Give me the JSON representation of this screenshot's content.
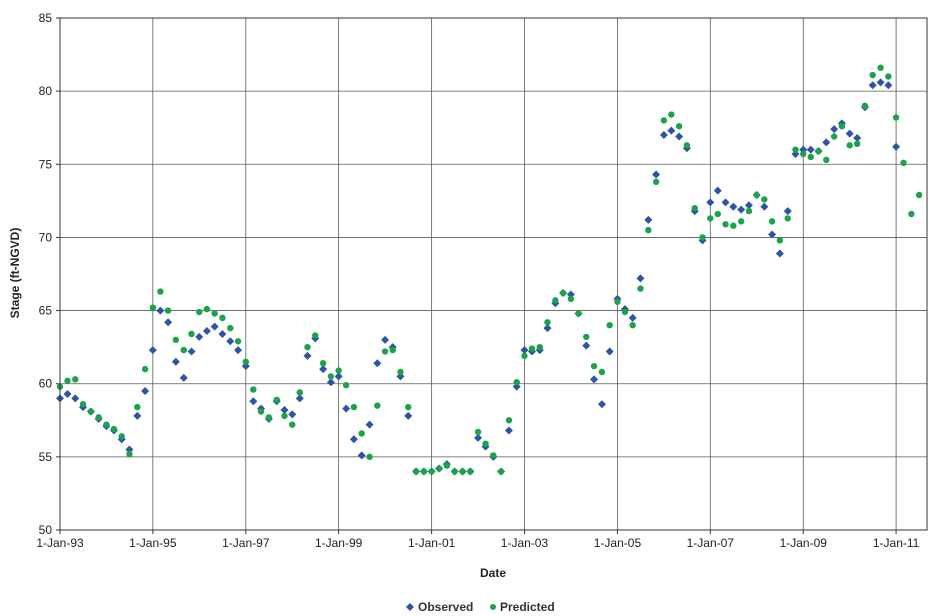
{
  "chart_data": {
    "type": "scatter",
    "title": "",
    "xlabel": "Date",
    "ylabel": "Stage (ft-NGVD)",
    "x_type": "date",
    "xlim": [
      "1993-01-01",
      "2011-09-01"
    ],
    "ylim": [
      50,
      85
    ],
    "grid": true,
    "legend_position": "bottom-center",
    "x_tick_labels": [
      "1-Jan-93",
      "1-Jan-95",
      "1-Jan-97",
      "1-Jan-99",
      "1-Jan-01",
      "1-Jan-03",
      "1-Jan-05",
      "1-Jan-07",
      "1-Jan-09",
      "1-Jan-11"
    ],
    "x_ticks": [
      "1993-01-01",
      "1995-01-01",
      "1997-01-01",
      "1999-01-01",
      "2001-01-01",
      "2003-01-01",
      "2005-01-01",
      "2007-01-01",
      "2009-01-01",
      "2011-01-01"
    ],
    "y_tick_labels": [
      "50",
      "55",
      "60",
      "65",
      "70",
      "75",
      "80",
      "85"
    ],
    "y_ticks": [
      50,
      55,
      60,
      65,
      70,
      75,
      80,
      85
    ],
    "series": [
      {
        "name": "Observed",
        "color": "#2E54A6",
        "marker": "diamond",
        "x": [
          "1993-01-01",
          "1993-03-01",
          "1993-05-01",
          "1993-07-01",
          "1993-09-01",
          "1993-11-01",
          "1994-01-01",
          "1994-03-01",
          "1994-05-01",
          "1994-07-01",
          "1994-09-01",
          "1994-11-01",
          "1995-01-01",
          "1995-03-01",
          "1995-05-01",
          "1995-07-01",
          "1995-09-01",
          "1995-11-01",
          "1996-01-01",
          "1996-03-01",
          "1996-05-01",
          "1996-07-01",
          "1996-09-01",
          "1996-11-01",
          "1997-01-01",
          "1997-03-01",
          "1997-05-01",
          "1997-07-01",
          "1997-09-01",
          "1997-11-01",
          "1998-01-01",
          "1998-03-01",
          "1998-05-01",
          "1998-07-01",
          "1998-09-01",
          "1998-11-01",
          "1999-01-01",
          "1999-03-01",
          "1999-05-01",
          "1999-07-01",
          "1999-09-01",
          "1999-11-01",
          "2000-01-01",
          "2000-03-01",
          "2000-05-01",
          "2000-07-01",
          "2000-09-01",
          "2000-11-01",
          "2001-01-01",
          "2001-03-01",
          "2001-05-01",
          "2001-07-01",
          "2001-09-01",
          "2001-11-01",
          "2002-01-01",
          "2002-03-01",
          "2002-05-01",
          "2002-07-01",
          "2002-09-01",
          "2002-11-01",
          "2003-01-01",
          "2003-03-01",
          "2003-05-01",
          "2003-07-01",
          "2003-09-01",
          "2003-11-01",
          "2004-01-01",
          "2004-03-01",
          "2004-05-01",
          "2004-07-01",
          "2004-09-01",
          "2004-11-01",
          "2005-01-01",
          "2005-03-01",
          "2005-05-01",
          "2005-07-01",
          "2005-09-01",
          "2005-11-01",
          "2006-01-01",
          "2006-03-01",
          "2006-05-01",
          "2006-07-01",
          "2006-09-01",
          "2006-11-01",
          "2007-01-01",
          "2007-03-01",
          "2007-05-01",
          "2007-07-01",
          "2007-09-01",
          "2007-11-01",
          "2008-01-01",
          "2008-03-01",
          "2008-05-01",
          "2008-07-01",
          "2008-09-01",
          "2008-11-01",
          "2009-01-01",
          "2009-03-01",
          "2009-05-01",
          "2009-07-01",
          "2009-09-01",
          "2009-11-01",
          "2010-01-01",
          "2010-03-01",
          "2010-05-01",
          "2010-07-01",
          "2010-09-01",
          "2010-11-01",
          "2011-01-01"
        ],
        "y": [
          59.0,
          59.3,
          59.0,
          58.4,
          58.1,
          57.6,
          57.1,
          56.8,
          56.2,
          55.5,
          57.8,
          59.5,
          62.3,
          65.0,
          64.2,
          61.5,
          60.4,
          62.2,
          63.2,
          63.6,
          63.9,
          63.4,
          62.9,
          62.3,
          61.2,
          58.8,
          58.3,
          57.6,
          58.8,
          58.2,
          57.9,
          59.0,
          61.9,
          63.1,
          61.0,
          60.1,
          60.5,
          58.3,
          56.2,
          55.1,
          57.2,
          61.4,
          63.0,
          62.5,
          60.5,
          57.8,
          54.0,
          54.0,
          54.0,
          54.2,
          54.5,
          54.0,
          54.0,
          54.0,
          56.3,
          55.7,
          55.0,
          54.0,
          56.8,
          59.8,
          62.3,
          62.2,
          62.3,
          63.8,
          65.5,
          66.2,
          66.1,
          64.8,
          62.6,
          60.3,
          58.6,
          62.2,
          65.8,
          65.1,
          64.5,
          67.2,
          71.2,
          74.3,
          77.0,
          77.3,
          76.9,
          76.1,
          71.8,
          69.8,
          72.4,
          73.2,
          72.4,
          72.1,
          71.9,
          72.2,
          72.9,
          72.1,
          70.2,
          68.9,
          71.8,
          75.7,
          76.0,
          76.0,
          75.9,
          76.5,
          77.4,
          77.8,
          77.1,
          76.8,
          78.9,
          80.4,
          80.6,
          80.4,
          76.2
        ]
      },
      {
        "name": "Predicted",
        "color": "#1BA24A",
        "marker": "circle",
        "x": [
          "1993-01-01",
          "1993-03-01",
          "1993-05-01",
          "1993-07-01",
          "1993-09-01",
          "1993-11-01",
          "1994-01-01",
          "1994-03-01",
          "1994-05-01",
          "1994-07-01",
          "1994-09-01",
          "1994-11-01",
          "1995-01-01",
          "1995-03-01",
          "1995-05-01",
          "1995-07-01",
          "1995-09-01",
          "1995-11-01",
          "1996-01-01",
          "1996-03-01",
          "1996-05-01",
          "1996-07-01",
          "1996-09-01",
          "1996-11-01",
          "1997-01-01",
          "1997-03-01",
          "1997-05-01",
          "1997-07-01",
          "1997-09-01",
          "1997-11-01",
          "1998-01-01",
          "1998-03-01",
          "1998-05-01",
          "1998-07-01",
          "1998-09-01",
          "1998-11-01",
          "1999-01-01",
          "1999-03-01",
          "1999-05-01",
          "1999-07-01",
          "1999-09-01",
          "1999-11-01",
          "2000-01-01",
          "2000-03-01",
          "2000-05-01",
          "2000-07-01",
          "2000-09-01",
          "2000-11-01",
          "2001-01-01",
          "2001-03-01",
          "2001-05-01",
          "2001-07-01",
          "2001-09-01",
          "2001-11-01",
          "2002-01-01",
          "2002-03-01",
          "2002-05-01",
          "2002-07-01",
          "2002-09-01",
          "2002-11-01",
          "2003-01-01",
          "2003-03-01",
          "2003-05-01",
          "2003-07-01",
          "2003-09-01",
          "2003-11-01",
          "2004-01-01",
          "2004-03-01",
          "2004-05-01",
          "2004-07-01",
          "2004-09-01",
          "2004-11-01",
          "2005-01-01",
          "2005-03-01",
          "2005-05-01",
          "2005-07-01",
          "2005-09-01",
          "2005-11-01",
          "2006-01-01",
          "2006-03-01",
          "2006-05-01",
          "2006-07-01",
          "2006-09-01",
          "2006-11-01",
          "2007-01-01",
          "2007-03-01",
          "2007-05-01",
          "2007-07-01",
          "2007-09-01",
          "2007-11-01",
          "2008-01-01",
          "2008-03-01",
          "2008-05-01",
          "2008-07-01",
          "2008-09-01",
          "2008-11-01",
          "2009-01-01",
          "2009-03-01",
          "2009-05-01",
          "2009-07-01",
          "2009-09-01",
          "2009-11-01",
          "2010-01-01",
          "2010-03-01",
          "2010-05-01",
          "2010-07-01",
          "2010-09-01",
          "2010-11-01",
          "2011-01-01",
          "2011-03-01",
          "2011-05-01",
          "2011-07-01"
        ],
        "y": [
          59.8,
          60.2,
          60.3,
          58.6,
          58.1,
          57.7,
          57.2,
          56.9,
          56.4,
          55.2,
          58.4,
          61.0,
          65.2,
          66.3,
          65.0,
          63.0,
          62.3,
          63.4,
          64.9,
          65.1,
          64.8,
          64.5,
          63.8,
          62.9,
          61.5,
          59.6,
          58.1,
          57.7,
          58.9,
          57.8,
          57.2,
          59.4,
          62.5,
          63.3,
          61.4,
          60.5,
          60.9,
          59.9,
          58.4,
          56.6,
          55.0,
          58.5,
          62.2,
          62.3,
          60.8,
          58.4,
          54.0,
          54.0,
          54.0,
          54.2,
          54.4,
          54.0,
          54.0,
          54.0,
          56.7,
          55.9,
          55.1,
          54.0,
          57.5,
          60.1,
          61.9,
          62.4,
          62.5,
          64.2,
          65.7,
          66.2,
          65.8,
          64.8,
          63.2,
          61.2,
          60.8,
          64.0,
          65.6,
          64.9,
          64.0,
          66.5,
          70.5,
          73.8,
          78.0,
          78.4,
          77.6,
          76.3,
          72.0,
          70.0,
          71.3,
          71.6,
          70.9,
          70.8,
          71.1,
          71.8,
          72.9,
          72.6,
          71.1,
          69.8,
          71.3,
          76.0,
          75.7,
          75.5,
          75.9,
          75.3,
          76.9,
          77.6,
          76.3,
          76.4,
          79.0,
          81.1,
          81.6,
          81.0,
          78.2,
          75.1,
          71.6,
          72.9
        ]
      }
    ]
  }
}
